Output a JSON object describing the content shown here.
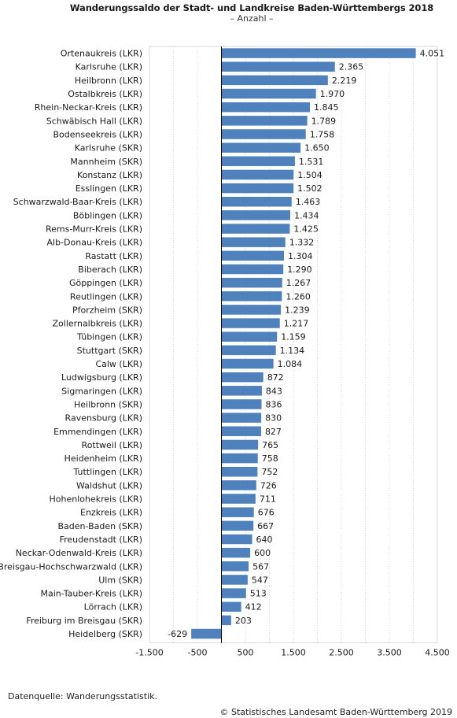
{
  "header": {
    "title": "Wanderungssaldo der Stadt- und Landkreise Baden-Württembergs 2018",
    "subtitle": "– Anzahl –"
  },
  "footer": {
    "source": "Datenquelle: Wanderungsstatistik.",
    "copyright": "© Statistisches Landesamt Baden-Württemberg 2019"
  },
  "colors": {
    "bar": "#4f81bd",
    "grid": "#d9d9d9",
    "zero_line": "#000000"
  },
  "chart_data": {
    "type": "bar",
    "orientation": "horizontal",
    "title": "Wanderungssaldo der Stadt- und Landkreise Baden-Württembergs 2018",
    "subtitle": "– Anzahl –",
    "xlim": [
      -1500,
      4500
    ],
    "x_ticks": [
      -1500,
      -500,
      500,
      1500,
      2500,
      3500,
      4500
    ],
    "x_tick_labels": [
      "-1.500",
      "-500",
      "500",
      "1.500",
      "2.500",
      "3.500",
      "4.500"
    ],
    "grid": true,
    "legend": "none",
    "categories": [
      "Ortenaukreis (LKR)",
      "Karlsruhe (LKR)",
      "Heilbronn (LKR)",
      "Ostalbkreis (LKR)",
      "Rhein-Neckar-Kreis (LKR)",
      "Schwäbisch Hall (LKR)",
      "Bodenseekreis (LKR)",
      "Karlsruhe (SKR)",
      "Mannheim (SKR)",
      "Konstanz (LKR)",
      "Esslingen (LKR)",
      "Schwarzwald-Baar-Kreis (LKR)",
      "Böblingen (LKR)",
      "Rems-Murr-Kreis  (LKR)",
      "Alb-Donau-Kreis (LKR)",
      "Rastatt (LKR)",
      "Biberach (LKR)",
      "Göppingen (LKR)",
      "Reutlingen (LKR)",
      "Pforzheim (SKR)",
      "Zollernalbkreis (LKR)",
      "Tübingen (LKR)",
      "Stuttgart (SKR)",
      "Calw (LKR)",
      "Ludwigsburg (LKR)",
      "Sigmaringen (LKR)",
      "Heilbronn (SKR)",
      "Ravensburg (LKR)",
      "Emmendingen (LKR)",
      "Rottweil (LKR)",
      "Heidenheim (LKR)",
      "Tuttlingen (LKR)",
      "Waldshut (LKR)",
      "Hohenlohekreis (LKR)",
      "Enzkreis (LKR)",
      "Baden-Baden (SKR)",
      "Freudenstadt (LKR)",
      "Neckar-Odenwald-Kreis (LKR)",
      "Breisgau-Hochschwarzwald (LKR)",
      "Ulm (SKR)",
      "Main-Tauber-Kreis (LKR)",
      "Lörrach (LKR)",
      "Freiburg im Breisgau (SKR)",
      "Heidelberg (SKR)"
    ],
    "values": [
      4051,
      2365,
      2219,
      1970,
      1845,
      1789,
      1758,
      1650,
      1531,
      1504,
      1502,
      1463,
      1434,
      1425,
      1332,
      1304,
      1290,
      1267,
      1260,
      1239,
      1217,
      1159,
      1134,
      1084,
      872,
      843,
      836,
      830,
      827,
      765,
      758,
      752,
      726,
      711,
      676,
      667,
      640,
      600,
      567,
      547,
      513,
      412,
      203,
      -629
    ],
    "value_labels": [
      "4.051",
      "2.365",
      "2.219",
      "1.970",
      "1.845",
      "1.789",
      "1.758",
      "1.650",
      "1.531",
      "1.504",
      "1.502",
      "1.463",
      "1.434",
      "1.425",
      "1.332",
      "1.304",
      "1.290",
      "1.267",
      "1.260",
      "1.239",
      "1.217",
      "1.159",
      "1.134",
      "1.084",
      "872",
      "843",
      "836",
      "830",
      "827",
      "765",
      "758",
      "752",
      "726",
      "711",
      "676",
      "667",
      "640",
      "600",
      "567",
      "547",
      "513",
      "412",
      "203",
      "-629"
    ]
  }
}
